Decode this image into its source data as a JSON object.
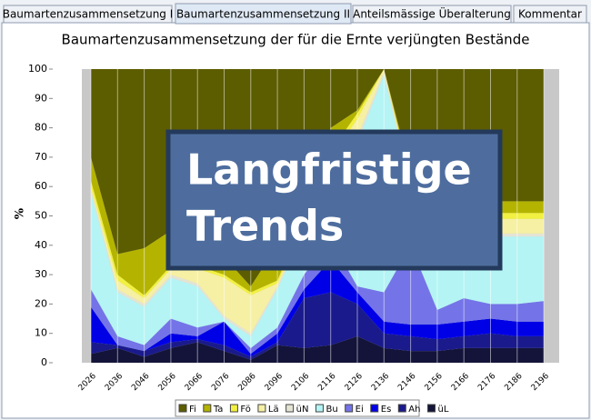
{
  "tabs": [
    "Baumartenzusammensetzung I",
    "Baumartenzusammensetzung II",
    "Anteilsmässige Überalterung",
    "Kommentar"
  ],
  "overlay": {
    "lines": [
      "Langfristige",
      "Trends"
    ]
  },
  "chart_data": {
    "type": "stacked_area",
    "title": "Baumartenzusammensetzung der für die Ernte verjüngten Bestände",
    "y_label": "%",
    "categories": [
      "2026",
      "2036",
      "2046",
      "2056",
      "2066",
      "2076",
      "2086",
      "2096",
      "2106",
      "2116",
      "2126",
      "2136",
      "2146",
      "2156",
      "2166",
      "2176",
      "2186",
      "2196"
    ],
    "ylim": [
      0,
      100
    ],
    "yticks": [
      0,
      10,
      20,
      30,
      40,
      50,
      60,
      70,
      80,
      90,
      100
    ],
    "series": [
      {
        "name": "üL",
        "color": "#14143a",
        "values": [
          3,
          5,
          2,
          5,
          7,
          4,
          1,
          6,
          5,
          6,
          9,
          5,
          4,
          4,
          5,
          5,
          5,
          5
        ]
      },
      {
        "name": "Ah",
        "color": "#1a1a8c",
        "values": [
          4,
          1,
          2,
          2,
          1,
          2,
          1,
          1,
          17,
          18,
          11,
          5,
          5,
          4,
          4,
          5,
          4,
          4
        ]
      },
      {
        "name": "Es",
        "color": "#0000e6",
        "values": [
          12,
          0,
          0,
          3,
          1,
          8,
          1,
          3,
          3,
          11,
          4,
          4,
          4,
          5,
          5,
          5,
          5,
          5
        ]
      },
      {
        "name": "Ei",
        "color": "#7474e8",
        "values": [
          6,
          3,
          2,
          5,
          3,
          0,
          2,
          2,
          5,
          7,
          2,
          10,
          27,
          5,
          8,
          5,
          6,
          7
        ]
      },
      {
        "name": "Bu",
        "color": "#b4f4f4",
        "values": [
          33,
          15,
          13,
          14,
          14,
          1,
          4,
          13,
          15,
          18,
          49,
          74,
          20,
          24,
          21,
          23,
          23,
          22
        ]
      },
      {
        "name": "üN",
        "color": "#e4e4d4",
        "values": [
          1,
          1,
          1,
          1,
          1,
          1,
          1,
          1,
          1,
          2,
          2,
          1,
          1,
          1,
          1,
          1,
          1,
          1
        ]
      },
      {
        "name": "Lä",
        "color": "#f6f0a4",
        "values": [
          1,
          3,
          2,
          2,
          5,
          13,
          13,
          1,
          2,
          8,
          6,
          1,
          1,
          5,
          5,
          5,
          5,
          5
        ]
      },
      {
        "name": "Fö",
        "color": "#f2f040",
        "values": [
          2,
          2,
          1,
          1,
          1,
          1,
          1,
          1,
          2,
          2,
          2,
          0,
          1,
          2,
          2,
          2,
          2,
          2
        ]
      },
      {
        "name": "Ta",
        "color": "#b4b400",
        "values": [
          8,
          7,
          16,
          12,
          7,
          6,
          2,
          12,
          10,
          8,
          1,
          0,
          2,
          5,
          4,
          4,
          4,
          4
        ]
      },
      {
        "name": "Fi",
        "color": "#5c5c00",
        "values": [
          30,
          63,
          61,
          55,
          60,
          64,
          74,
          60,
          40,
          20,
          14,
          0,
          35,
          45,
          45,
          45,
          45,
          45
        ]
      }
    ]
  }
}
